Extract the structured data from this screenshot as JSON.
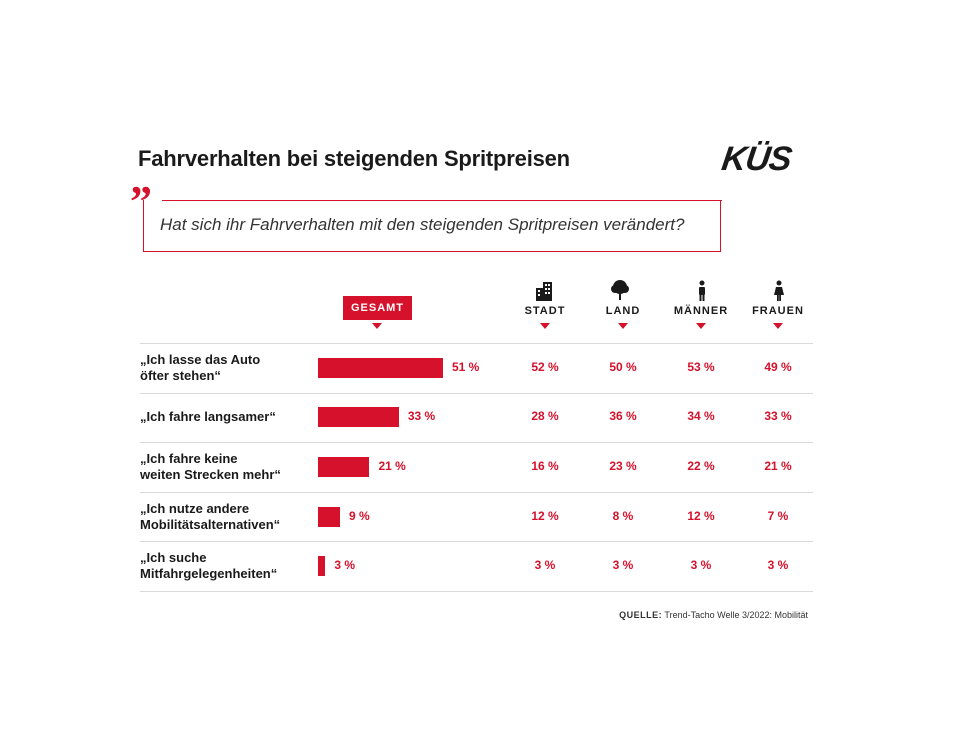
{
  "title": "Fahrverhalten bei steigenden Spritpreisen",
  "logo": "KÜS",
  "question": "Hat sich ihr Fahrverhalten mit den steigenden Spritpreisen verändert?",
  "accent_color": "#d5112b",
  "columns": {
    "gesamt": "GESAMT",
    "stadt": "STADT",
    "land": "LAND",
    "maenner": "MÄNNER",
    "frauen": "FRAUEN"
  },
  "column_icons": {
    "stadt": "city-buildings-icon",
    "land": "tree-icon",
    "maenner": "male-person-icon",
    "frauen": "female-person-icon"
  },
  "source": {
    "label": "QUELLE:",
    "text": "Trend-Tacho Welle 3/2022: Mobilität"
  },
  "chart_data": {
    "type": "bar",
    "orientation": "horizontal",
    "categories": [
      [
        "„Ich lasse das Auto",
        "öfter stehen“"
      ],
      [
        "„Ich fahre langsamer“"
      ],
      [
        "„Ich fahre keine",
        "weiten Strecken mehr“"
      ],
      [
        "„Ich nutze andere",
        "Mobilitätsalternativen“"
      ],
      [
        "„Ich suche",
        "Mitfahrgelegenheiten“"
      ]
    ],
    "series": [
      {
        "name": "GESAMT",
        "values": [
          51,
          33,
          21,
          9,
          3
        ],
        "labels": [
          "51 %",
          "33 %",
          "21 %",
          "9 %",
          "3 %"
        ]
      },
      {
        "name": "STADT",
        "values": [
          52,
          28,
          16,
          12,
          3
        ],
        "labels": [
          "52 %",
          "28 %",
          "16 %",
          "12 %",
          "3 %"
        ]
      },
      {
        "name": "LAND",
        "values": [
          50,
          36,
          23,
          8,
          3
        ],
        "labels": [
          "50 %",
          "36 %",
          "23 %",
          "8 %",
          "3 %"
        ]
      },
      {
        "name": "MÄNNER",
        "values": [
          53,
          34,
          22,
          12,
          3
        ],
        "labels": [
          "53 %",
          "34 %",
          "22 %",
          "12 %",
          "3 %"
        ]
      },
      {
        "name": "FRAUEN",
        "values": [
          49,
          33,
          21,
          7,
          3
        ],
        "labels": [
          "49 %",
          "33 %",
          "21 %",
          "7 %",
          "3 %"
        ]
      }
    ],
    "unit": "%",
    "xlim": [
      0,
      100
    ],
    "legend": "none",
    "grid": false
  }
}
